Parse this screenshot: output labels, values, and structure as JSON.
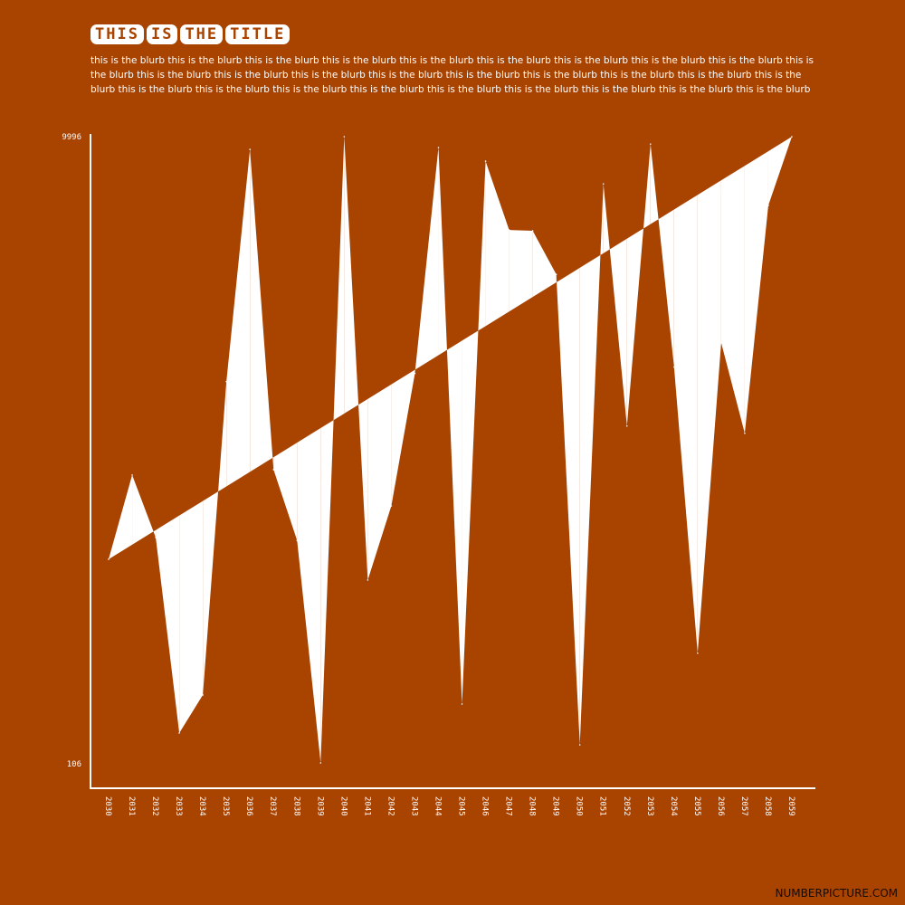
{
  "title_words": [
    "THIS",
    "IS",
    "THE",
    "TITLE"
  ],
  "blurb": "this is the blurb this is the blurb this is the blurb this is the blurb this is the blurb this is the blurb this is the blurb this is the blurb this is the blurb this is the blurb this is the blurb this is the blurb this is the blurb this is the blurb this is the blurb this is the blurb this is the blurb this is the blurb this is the blurb this is the blurb this is the blurb this is the blurb this is the blurb this is the blurb this is the blurb this is the blurb this is the blurb this is the blurb",
  "brand": "NUMBERPICTURE.COM",
  "colors": {
    "background": "#a94300",
    "foreground": "#ffffff",
    "brand": "#1a0a00"
  },
  "chart_data": {
    "type": "area",
    "title": "THIS IS THE TITLE",
    "ymin_label": "106",
    "ymax_label": "9996",
    "ylim": [
      106,
      9996
    ],
    "trend": [
      3322,
      9996
    ],
    "x": [
      2030,
      2031,
      2032,
      2033,
      2034,
      2035,
      2036,
      2037,
      2038,
      2039,
      2040,
      2041,
      2042,
      2043,
      2044,
      2045,
      2046,
      2047,
      2048,
      2049,
      2050,
      2051,
      2052,
      2053,
      2054,
      2055,
      2056,
      2057,
      2058,
      2059
    ],
    "values": [
      3322,
      4652,
      3666,
      578,
      1179,
      6128,
      9795,
      4738,
      3620,
      106,
      9996,
      2994,
      4165,
      6257,
      9824,
      1036,
      9609,
      8523,
      8510,
      7821,
      392,
      9251,
      5426,
      9880,
      6357,
      1839,
      6742,
      5311,
      8909,
      9996
    ],
    "grid": false,
    "legend": "none"
  }
}
